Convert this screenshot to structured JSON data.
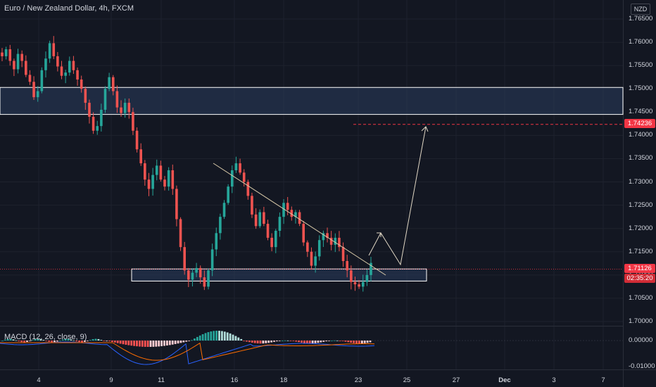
{
  "header": {
    "title": "Euro / New Zealand Dollar, 4h, FXCM",
    "currency": "NZD"
  },
  "price_axis": {
    "ticks": [
      "1.76500",
      "1.76000",
      "1.75500",
      "1.75000",
      "1.74500",
      "1.74000",
      "1.73500",
      "1.73000",
      "1.72500",
      "1.72000",
      "1.71500",
      "1.71000",
      "1.70500",
      "1.70000"
    ],
    "target_label": "1.74236",
    "current_label": "1.71126",
    "timer_label": "02:35:20"
  },
  "macd": {
    "label": "MACD (12, 26, close, 9)",
    "ticks": [
      "0.00000",
      "-0.01000"
    ]
  },
  "time_axis": {
    "ticks": [
      {
        "label": "4",
        "bold": false
      },
      {
        "label": "9",
        "bold": false
      },
      {
        "label": "11",
        "bold": false
      },
      {
        "label": "16",
        "bold": false
      },
      {
        "label": "18",
        "bold": false
      },
      {
        "label": "23",
        "bold": false
      },
      {
        "label": "25",
        "bold": false
      },
      {
        "label": "27",
        "bold": false
      },
      {
        "label": "Dec",
        "bold": true
      },
      {
        "label": "3",
        "bold": false
      },
      {
        "label": "7",
        "bold": false
      }
    ]
  },
  "colors": {
    "up": "#26a69a",
    "down": "#ef5350",
    "background": "#131722",
    "zone": "#2a3d5c",
    "trendline": "#d8c9a8",
    "target_line": "#f23645"
  },
  "chart_data": {
    "type": "candlestick",
    "symbol": "Euro / New Zealand Dollar, 4h, FXCM",
    "ylim": [
      1.6985,
      1.7675
    ],
    "supply_zone": [
      1.7445,
      1.7503
    ],
    "demand_zone": [
      1.7087,
      1.7113
    ],
    "target": 1.74236,
    "current_price": 1.71126,
    "closes": [
      1.757,
      1.7585,
      1.756,
      1.7542,
      1.7575,
      1.756,
      1.753,
      1.7515,
      1.7482,
      1.7495,
      1.754,
      1.7565,
      1.7598,
      1.757,
      1.7548,
      1.7528,
      1.7535,
      1.756,
      1.754,
      1.752,
      1.75,
      1.747,
      1.744,
      1.741,
      1.742,
      1.7455,
      1.75,
      1.7525,
      1.7495,
      1.746,
      1.7448,
      1.747,
      1.745,
      1.741,
      1.737,
      1.734,
      1.7305,
      1.7285,
      1.7315,
      1.7335,
      1.7305,
      1.729,
      1.7325,
      1.7285,
      1.722,
      1.716,
      1.711,
      1.709,
      1.7105,
      1.7115,
      1.7095,
      1.7075,
      1.711,
      1.7155,
      1.719,
      1.7225,
      1.7255,
      1.729,
      1.7325,
      1.734,
      1.732,
      1.73,
      1.727,
      1.723,
      1.7205,
      1.7235,
      1.721,
      1.718,
      1.716,
      1.7195,
      1.7225,
      1.7255,
      1.724,
      1.7225,
      1.7235,
      1.721,
      1.717,
      1.715,
      1.712,
      1.714,
      1.7175,
      1.719,
      1.718,
      1.7165,
      1.718,
      1.716,
      1.713,
      1.711,
      1.7085,
      1.708,
      1.7075,
      1.7085,
      1.71,
      1.7126
    ],
    "macd_histogram_trend": "negative then positive peak near 16, negative around 18-23"
  }
}
